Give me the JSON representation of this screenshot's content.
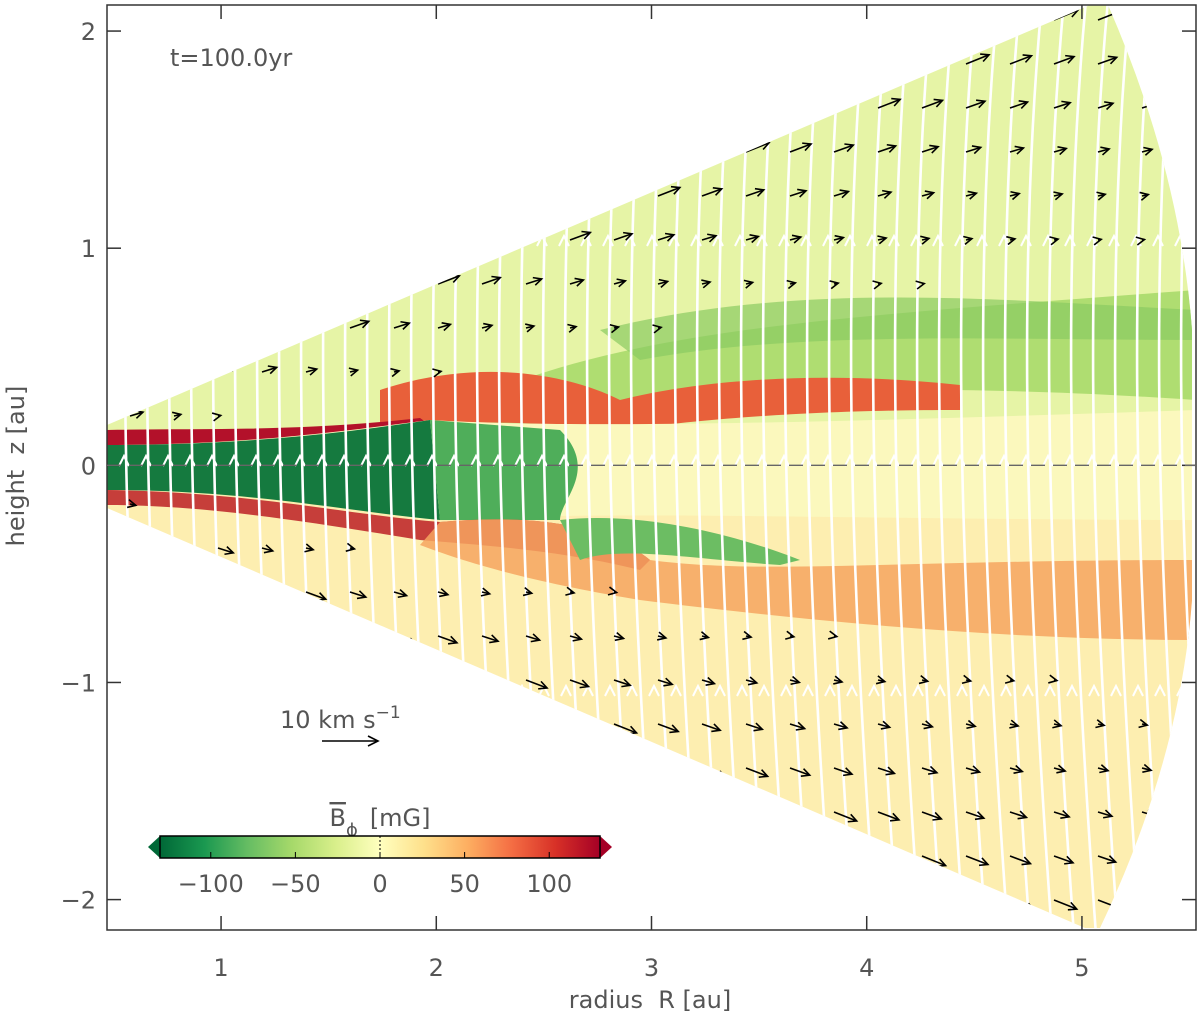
{
  "chart_data": {
    "type": "heatmap",
    "annotation": "t=100.0yr",
    "x_label": "radius  R [au]",
    "y_label": "height  z [au]",
    "xlim": [
      0.47,
      5.53
    ],
    "ylim": [
      -2.14,
      2.12
    ],
    "xticks": [
      1,
      2,
      3,
      4,
      5
    ],
    "yticks": [
      {
        "value": -2,
        "label": "−2"
      },
      {
        "value": -1,
        "label": "−1"
      },
      0,
      1,
      2
    ],
    "velocity_key": {
      "text": "10 km s",
      "exponent": "−1"
    },
    "colorbar": {
      "label": "B",
      "subscript": "ϕ",
      "unit": "[mG]",
      "lim": [
        -130,
        130
      ],
      "ticks": [
        {
          "value": -100,
          "label": "−100"
        },
        {
          "value": -50,
          "label": "−50"
        },
        0,
        50,
        100
      ],
      "colors": [
        "#006837",
        "#1a9850",
        "#66bd63",
        "#a6d96a",
        "#d9ef8b",
        "#ffffbf",
        "#fee08b",
        "#fdae61",
        "#f46d43",
        "#d73027",
        "#a50026"
      ]
    }
  }
}
